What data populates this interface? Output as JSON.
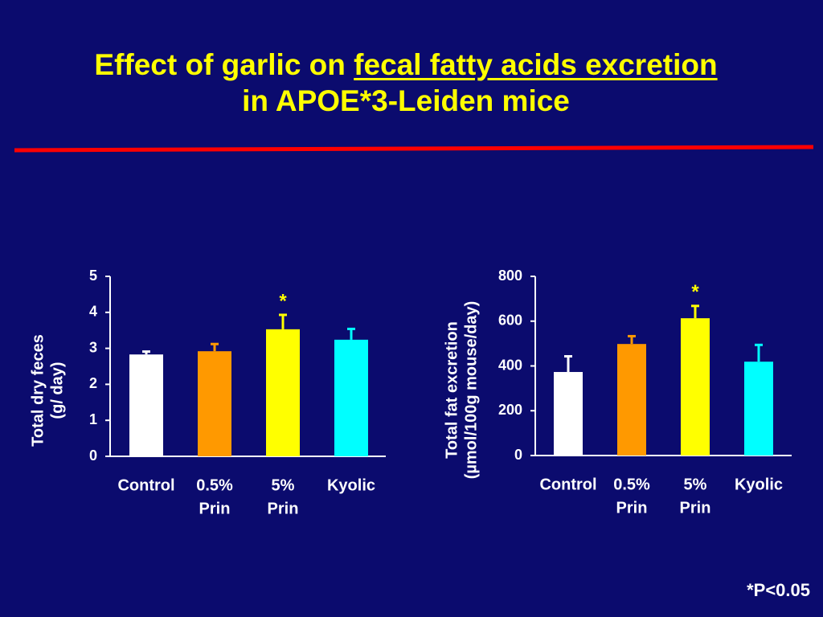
{
  "title": {
    "prefix": "Effect of garlic on ",
    "underlined": "fecal fatty acids excretion",
    "line2": "in APOE*3-Leiden mice"
  },
  "footnote": "*P<0.05",
  "chart_data": [
    {
      "type": "bar",
      "y_label": [
        "Total dry feces",
        "(g/ day)"
      ],
      "categories": [
        [
          "Control"
        ],
        [
          "0.5%",
          "Prin"
        ],
        [
          "5%",
          "Prin"
        ],
        [
          "Kyolic"
        ]
      ],
      "values": [
        2.83,
        2.92,
        3.53,
        3.24
      ],
      "errors": [
        0.08,
        0.2,
        0.4,
        0.3
      ],
      "colors": [
        "#ffffff",
        "#ff9900",
        "#ffff00",
        "#00ffff"
      ],
      "ylim": [
        0,
        5
      ],
      "yticks": [
        0,
        1,
        2,
        3,
        4,
        5
      ],
      "annotations": [
        {
          "text": "*",
          "category": 2
        }
      ]
    },
    {
      "type": "bar",
      "y_label": [
        "Total fat excretion",
        "(µmol/100g mouse/day)"
      ],
      "categories": [
        [
          "Control"
        ],
        [
          "0.5%",
          "Prin"
        ],
        [
          "5%",
          "Prin"
        ],
        [
          "Kyolic"
        ]
      ],
      "values": [
        373,
        498,
        613,
        419
      ],
      "errors": [
        70,
        35,
        55,
        75
      ],
      "colors": [
        "#ffffff",
        "#ff9900",
        "#ffff00",
        "#00ffff"
      ],
      "ylim": [
        0,
        800
      ],
      "yticks": [
        0,
        200,
        400,
        600,
        800
      ],
      "annotations": [
        {
          "text": "*",
          "category": 2
        }
      ]
    }
  ]
}
